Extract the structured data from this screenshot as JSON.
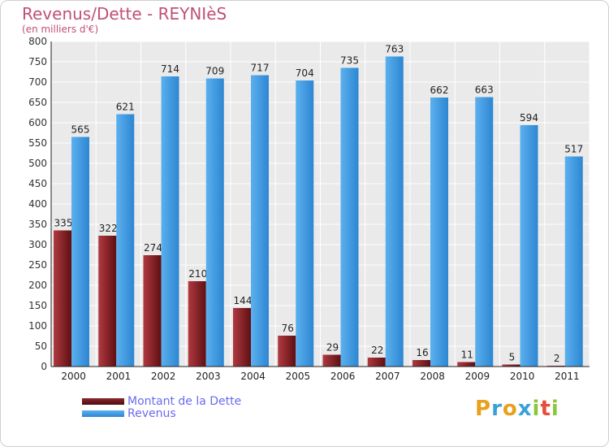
{
  "chart_data": {
    "type": "bar",
    "title": "Revenus/Dette - REYNIèS",
    "subtitle": "(en milliers d'€)",
    "categories": [
      "2000",
      "2001",
      "2002",
      "2003",
      "2004",
      "2005",
      "2006",
      "2007",
      "2008",
      "2009",
      "2010",
      "2011"
    ],
    "series": [
      {
        "name": "Montant de la Dette",
        "color": "#7a1e22",
        "values": [
          335,
          322,
          274,
          210,
          144,
          76,
          29,
          22,
          16,
          11,
          5,
          2
        ]
      },
      {
        "name": "Revenus",
        "color": "#3b94dc",
        "values": [
          565,
          621,
          714,
          709,
          717,
          704,
          735,
          763,
          662,
          663,
          594,
          517
        ]
      }
    ],
    "ylim": [
      0,
      800
    ],
    "ytick_step": 50,
    "grid": true,
    "legend": "bottom-left"
  },
  "logo": {
    "text": "Proxiti",
    "letters": [
      "P",
      "r",
      "o",
      "x",
      "i",
      "t",
      "i"
    ]
  }
}
